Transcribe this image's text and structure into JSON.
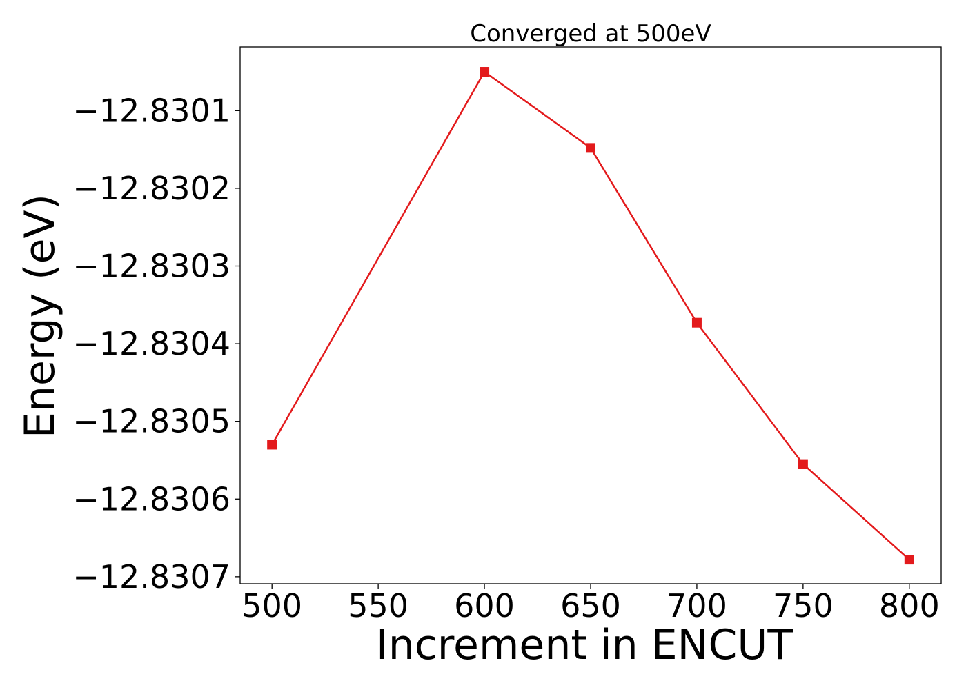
{
  "chart_data": {
    "type": "line",
    "title": "Converged at 500eV",
    "xlabel": "Increment in ENCUT",
    "ylabel": "Energy (eV)",
    "x": [
      500,
      600,
      650,
      700,
      750,
      800
    ],
    "series": [
      {
        "values": [
          -12.83053,
          -12.83005,
          -12.830148,
          -12.830373,
          -12.830555,
          -12.830678
        ],
        "color": "#e31a1c",
        "marker": "square"
      }
    ],
    "xticks": [
      500,
      550,
      600,
      650,
      700,
      750,
      800
    ],
    "xtick_labels": [
      "500",
      "550",
      "600",
      "650",
      "700",
      "750",
      "800"
    ],
    "yticks": [
      -12.8301,
      -12.8302,
      -12.8303,
      -12.8304,
      -12.8305,
      -12.8306,
      -12.8307
    ],
    "ytick_labels": [
      "−12.8301",
      "−12.8302",
      "−12.8303",
      "−12.8304",
      "−12.8305",
      "−12.8306",
      "−12.8307"
    ],
    "xlim": [
      485,
      815
    ],
    "ylim": [
      -12.830709,
      -12.830018
    ],
    "grid": false,
    "legend": "none"
  }
}
